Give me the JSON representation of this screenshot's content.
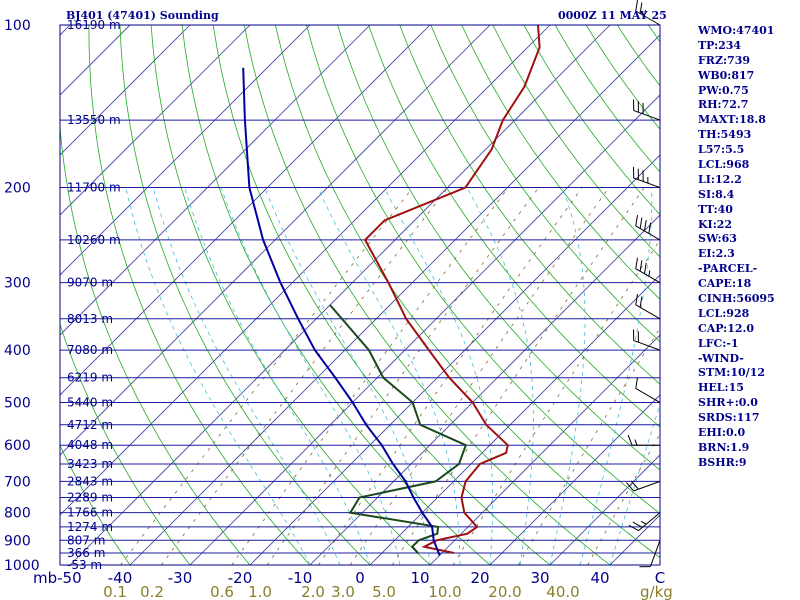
{
  "header": {
    "station": "BJ401 (47401) Sounding",
    "valid_time": "0000Z 11 MAY 25"
  },
  "indices": [
    "WMO:47401",
    "TP:234",
    "FRZ:739",
    "WB0:817",
    "PW:0.75",
    "RH:72.7",
    "MAXT:18.8",
    "TH:5493",
    "L57:5.5",
    "LCL:968",
    "LI:12.2",
    "SI:8.4",
    "TT:40",
    "KI:22",
    "SW:63",
    "EI:2.3",
    "-PARCEL-",
    "CAPE:18",
    "CINH:56095",
    "LCL:928",
    "CAP:12.0",
    "LFC:-1",
    "-WIND-",
    "STM:10/12",
    "HEL:15",
    "SHR+:0.0",
    "SRDS:117",
    "EHI:0.0",
    "BRN:1.9",
    "BSHR:9"
  ],
  "chart_data": {
    "type": "line",
    "title": "",
    "xlabel": "C",
    "ylabel": "mb",
    "x_units": "C",
    "y_units": "mb",
    "y_scale": "log",
    "xlim": [
      -50,
      50
    ],
    "ylim": [
      1000,
      100
    ],
    "pressure_ticks": [
      100,
      200,
      300,
      400,
      500,
      600,
      700,
      800,
      900,
      1000
    ],
    "temperature_ticks": [
      -50,
      -40,
      -30,
      -20,
      -10,
      0,
      10,
      20,
      30,
      40
    ],
    "temperature_tick_labels": [
      "mb-50",
      "-40",
      "-30",
      "-20",
      "-10",
      "0",
      "10",
      "20",
      "30",
      "40"
    ],
    "mixing_ratio_labels": [
      "0.1",
      "0.2",
      "0.6",
      "1.0",
      "2.0",
      "3.0",
      "5.0",
      "10.0",
      "20.0",
      "40.0"
    ],
    "mixing_ratio_values": [
      0.1,
      0.2,
      0.6,
      1.0,
      2.0,
      3.0,
      5.0,
      10.0,
      20.0,
      40.0
    ],
    "mixing_ratio_unit": "g/kg",
    "height_levels": [
      {
        "p": 100,
        "label": "16190 m"
      },
      {
        "p": 150,
        "label": "13550 m"
      },
      {
        "p": 200,
        "label": "11700 m"
      },
      {
        "p": 250,
        "label": "10260 m"
      },
      {
        "p": 300,
        "label": "9070 m"
      },
      {
        "p": 350,
        "label": "8013 m"
      },
      {
        "p": 400,
        "label": "7080 m"
      },
      {
        "p": 450,
        "label": "6219 m"
      },
      {
        "p": 500,
        "label": "5440 m"
      },
      {
        "p": 550,
        "label": "4712 m"
      },
      {
        "p": 600,
        "label": "4048 m"
      },
      {
        "p": 650,
        "label": "3423 m"
      },
      {
        "p": 700,
        "label": "2843 m"
      },
      {
        "p": 750,
        "label": "2289 m"
      },
      {
        "p": 800,
        "label": "1766 m"
      },
      {
        "p": 850,
        "label": "1274 m"
      },
      {
        "p": 900,
        "label": "807 m"
      },
      {
        "p": 950,
        "label": "366 m"
      },
      {
        "p": 1000,
        "label": "-53 m"
      }
    ],
    "series": [
      {
        "name": "",
        "role": "temperature",
        "color": "#a01010",
        "points": [
          {
            "p": 950,
            "t": 12
          },
          {
            "p": 925,
            "t": 6
          },
          {
            "p": 900,
            "t": 7
          },
          {
            "p": 875,
            "t": 11
          },
          {
            "p": 850,
            "t": 11.5
          },
          {
            "p": 800,
            "t": 7
          },
          {
            "p": 750,
            "t": 4
          },
          {
            "p": 700,
            "t": 2
          },
          {
            "p": 650,
            "t": 1.5
          },
          {
            "p": 620,
            "t": 4
          },
          {
            "p": 600,
            "t": 3
          },
          {
            "p": 550,
            "t": -4
          },
          {
            "p": 500,
            "t": -10
          },
          {
            "p": 450,
            "t": -18
          },
          {
            "p": 400,
            "t": -26
          },
          {
            "p": 350,
            "t": -35
          },
          {
            "p": 300,
            "t": -44
          },
          {
            "p": 250,
            "t": -55
          },
          {
            "p": 230,
            "t": -55
          },
          {
            "p": 200,
            "t": -47
          },
          {
            "p": 170,
            "t": -49
          },
          {
            "p": 150,
            "t": -52
          },
          {
            "p": 130,
            "t": -54
          },
          {
            "p": 110,
            "t": -58
          },
          {
            "p": 100,
            "t": -62
          }
        ]
      },
      {
        "name": "",
        "role": "dewpoint",
        "color": "#1a4a1a",
        "points": [
          {
            "p": 950,
            "t": 6
          },
          {
            "p": 925,
            "t": 4
          },
          {
            "p": 900,
            "t": 4
          },
          {
            "p": 875,
            "t": 6
          },
          {
            "p": 850,
            "t": 5
          },
          {
            "p": 800,
            "t": -12
          },
          {
            "p": 750,
            "t": -13
          },
          {
            "p": 700,
            "t": -3
          },
          {
            "p": 650,
            "t": -2
          },
          {
            "p": 600,
            "t": -4
          },
          {
            "p": 550,
            "t": -15
          },
          {
            "p": 500,
            "t": -20
          },
          {
            "p": 450,
            "t": -29
          },
          {
            "p": 400,
            "t": -36
          },
          {
            "p": 330,
            "t": -50
          }
        ]
      },
      {
        "name": "",
        "role": "parcel",
        "color": "#0000a0",
        "points": [
          {
            "p": 960,
            "t": 10
          },
          {
            "p": 900,
            "t": 6.5
          },
          {
            "p": 850,
            "t": 4
          },
          {
            "p": 800,
            "t": 0
          },
          {
            "p": 750,
            "t": -4
          },
          {
            "p": 700,
            "t": -8
          },
          {
            "p": 650,
            "t": -13
          },
          {
            "p": 600,
            "t": -18
          },
          {
            "p": 550,
            "t": -24
          },
          {
            "p": 500,
            "t": -30
          },
          {
            "p": 450,
            "t": -37
          },
          {
            "p": 400,
            "t": -45
          },
          {
            "p": 350,
            "t": -53
          },
          {
            "p": 300,
            "t": -62
          },
          {
            "p": 250,
            "t": -72
          },
          {
            "p": 200,
            "t": -83
          },
          {
            "p": 150,
            "t": -95
          },
          {
            "p": 120,
            "t": -104
          }
        ]
      }
    ],
    "wind_barbs": [
      {
        "p": 100,
        "dir": 300,
        "spd": 25
      },
      {
        "p": 150,
        "dir": 290,
        "spd": 30
      },
      {
        "p": 200,
        "dir": 290,
        "spd": 35
      },
      {
        "p": 250,
        "dir": 300,
        "spd": 40
      },
      {
        "p": 300,
        "dir": 300,
        "spd": 35
      },
      {
        "p": 350,
        "dir": 300,
        "spd": 20
      },
      {
        "p": 400,
        "dir": 290,
        "spd": 20
      },
      {
        "p": 500,
        "dir": 300,
        "spd": 10
      },
      {
        "p": 600,
        "dir": 270,
        "spd": 15
      },
      {
        "p": 700,
        "dir": 250,
        "spd": 20
      },
      {
        "p": 800,
        "dir": 230,
        "spd": 25
      },
      {
        "p": 900,
        "dir": 200,
        "spd": 10
      }
    ],
    "colors": {
      "isobar": "#1c1ca0",
      "isotherm": "#3b3b9e",
      "dry_adiabat": "#22aa22",
      "moist_adiabat": "#44bbdd",
      "mixing_ratio": "#7a6a30",
      "text": "#00008b",
      "wind_barb": "#000000"
    }
  }
}
